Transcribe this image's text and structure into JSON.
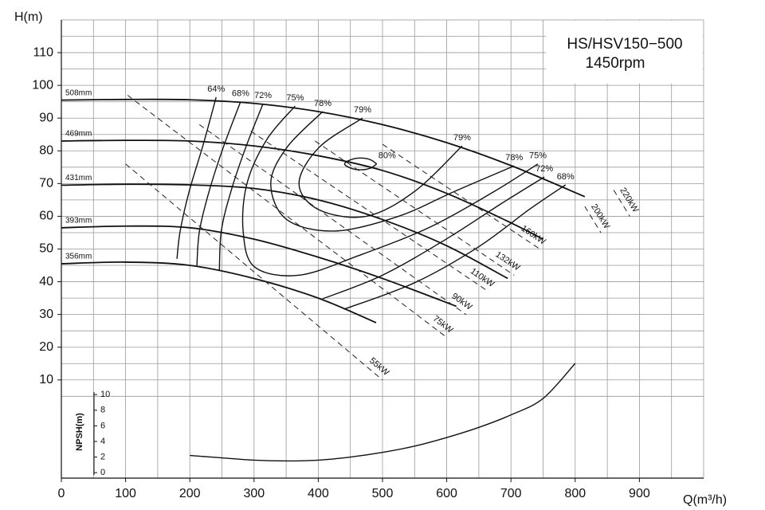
{
  "chart_data": {
    "type": "line",
    "title": "HS/HSV150−500",
    "subtitle": "1450rpm",
    "x_label": "Q(m³/h)",
    "y_label": "H(m)",
    "y2_label": "NPSH(m)",
    "xlim": [
      0,
      1000
    ],
    "xticks": [
      0,
      100,
      200,
      300,
      400,
      500,
      600,
      700,
      800,
      900
    ],
    "ylim": [
      -20,
      120
    ],
    "yticks": [
      10,
      20,
      30,
      40,
      50,
      60,
      70,
      80,
      90,
      100,
      110
    ],
    "y2lim": [
      -0.7,
      58
    ],
    "y2ticks": [
      0,
      2,
      4,
      6,
      8,
      10
    ],
    "grid": true,
    "series": [
      {
        "name": "508mm",
        "kind": "head",
        "color": "#111",
        "x": [
          0,
          100,
          200,
          300,
          400,
          500,
          600,
          700,
          815
        ],
        "values": [
          95.5,
          95.7,
          95.6,
          94.5,
          92,
          88,
          82.5,
          75.5,
          66
        ]
      },
      {
        "name": "469mm",
        "kind": "head",
        "color": "#111",
        "x": [
          0,
          100,
          200,
          300,
          400,
          500,
          600,
          700,
          750
        ],
        "values": [
          83,
          83.2,
          83,
          81.5,
          78.5,
          74,
          67,
          58,
          53
        ]
      },
      {
        "name": "431mm",
        "kind": "head",
        "color": "#111",
        "x": [
          0,
          100,
          200,
          300,
          400,
          500,
          600,
          695
        ],
        "values": [
          69.5,
          69.8,
          69.6,
          68.5,
          65,
          59,
          51,
          41
        ]
      },
      {
        "name": "393mm",
        "kind": "head",
        "color": "#111",
        "x": [
          0,
          100,
          200,
          300,
          400,
          500,
          615
        ],
        "values": [
          56.5,
          57,
          56.5,
          53,
          47.5,
          41,
          32.5
        ]
      },
      {
        "name": "356mm",
        "kind": "head",
        "color": "#111",
        "x": [
          0,
          100,
          200,
          300,
          400,
          490
        ],
        "values": [
          45.5,
          46,
          45,
          41,
          35,
          27.5
        ]
      },
      {
        "name": "64%",
        "kind": "efficiency",
        "color": "#111",
        "x": [
          241,
          221,
          199,
          185,
          180
        ],
        "values": [
          96.4,
          82,
          67.6,
          55.5,
          47
        ]
      },
      {
        "name": "68%",
        "kind": "efficiency",
        "color": "#111",
        "x": [
          279,
          252,
          230,
          215,
          211
        ],
        "values": [
          95,
          81,
          67.6,
          55.5,
          45
        ]
      },
      {
        "name": "72%",
        "kind": "efficiency",
        "color": "#111",
        "x": [
          314,
          287,
          264,
          249,
          246
        ],
        "values": [
          94.4,
          81,
          67.6,
          55.5,
          43.3
        ]
      },
      {
        "name": "75%",
        "kind": "efficiency",
        "color": "#111",
        "x": [
          364,
          320,
          289,
          283,
          301,
          370,
          463,
          574,
          674,
          742
        ],
        "values": [
          93.7,
          83.5,
          70,
          55.5,
          44.5,
          42,
          48,
          56.7,
          67.6,
          76
        ]
      },
      {
        "name": "78%",
        "kind": "efficiency",
        "color": "#111",
        "x": [
          407,
          351,
          326,
          351,
          426,
          525,
          612,
          705
        ],
        "values": [
          92,
          81,
          70,
          59,
          55.5,
          60,
          67.6,
          75.4
        ]
      },
      {
        "name": "79%",
        "kind": "efficiency",
        "color": "#111",
        "x": [
          469,
          401,
          370,
          401,
          475,
          550,
          624
        ],
        "values": [
          90,
          81,
          70,
          62,
          60,
          67.6,
          81.5
        ]
      },
      {
        "name": "80%",
        "kind": "efficiency",
        "color": "#111",
        "x": [
          491,
          481,
          466,
          451,
          441,
          451,
          466,
          481,
          491
        ],
        "values": [
          76,
          77.3,
          77.8,
          77.3,
          76,
          74.7,
          74.2,
          74.7,
          76
        ]
      },
      {
        "name": "72%",
        "kind": "efficiency",
        "color": "#111",
        "x": [
          407,
          500,
          599,
          686,
          752
        ],
        "values": [
          34.8,
          42,
          53,
          64,
          72
        ]
      },
      {
        "name": "68%",
        "kind": "efficiency",
        "color": "#111",
        "x": [
          440,
          550,
          649,
          730,
          785
        ],
        "values": [
          31.6,
          39.7,
          50.6,
          62.3,
          69.6
        ]
      },
      {
        "name": "55kW",
        "kind": "power",
        "color": "#222",
        "x": [
          100,
          500
        ],
        "values": [
          76,
          10
        ]
      },
      {
        "name": "75kW",
        "kind": "power",
        "color": "#222",
        "x": [
          103,
          600
        ],
        "values": [
          97,
          23
        ]
      },
      {
        "name": "90kW",
        "kind": "power",
        "color": "#222",
        "x": [
          215,
          630
        ],
        "values": [
          88,
          30
        ]
      },
      {
        "name": "110kW",
        "kind": "power",
        "color": "#222",
        "x": [
          295,
          665
        ],
        "values": [
          86,
          37
        ]
      },
      {
        "name": "132kW",
        "kind": "power",
        "color": "#222",
        "x": [
          395,
          705
        ],
        "values": [
          83,
          42
        ]
      },
      {
        "name": "160kW",
        "kind": "power",
        "color": "#222",
        "x": [
          500,
          745
        ],
        "values": [
          82,
          50
        ]
      },
      {
        "name": "200kW",
        "kind": "power",
        "color": "#222",
        "x": [
          815,
          840
        ],
        "values": [
          63,
          55
        ]
      },
      {
        "name": "220kW",
        "kind": "power",
        "color": "#222",
        "x": [
          860,
          885
        ],
        "values": [
          68,
          60
        ]
      },
      {
        "name": "NPSH",
        "kind": "npsh",
        "axis": "y2",
        "color": "#111",
        "x": [
          200,
          250,
          300,
          350,
          400,
          450,
          500,
          550,
          600,
          650,
          700,
          750,
          800
        ],
        "values": [
          2.2,
          1.9,
          1.6,
          1.5,
          1.6,
          2.0,
          2.6,
          3.4,
          4.5,
          5.8,
          7.4,
          9.5,
          14
        ]
      }
    ]
  }
}
